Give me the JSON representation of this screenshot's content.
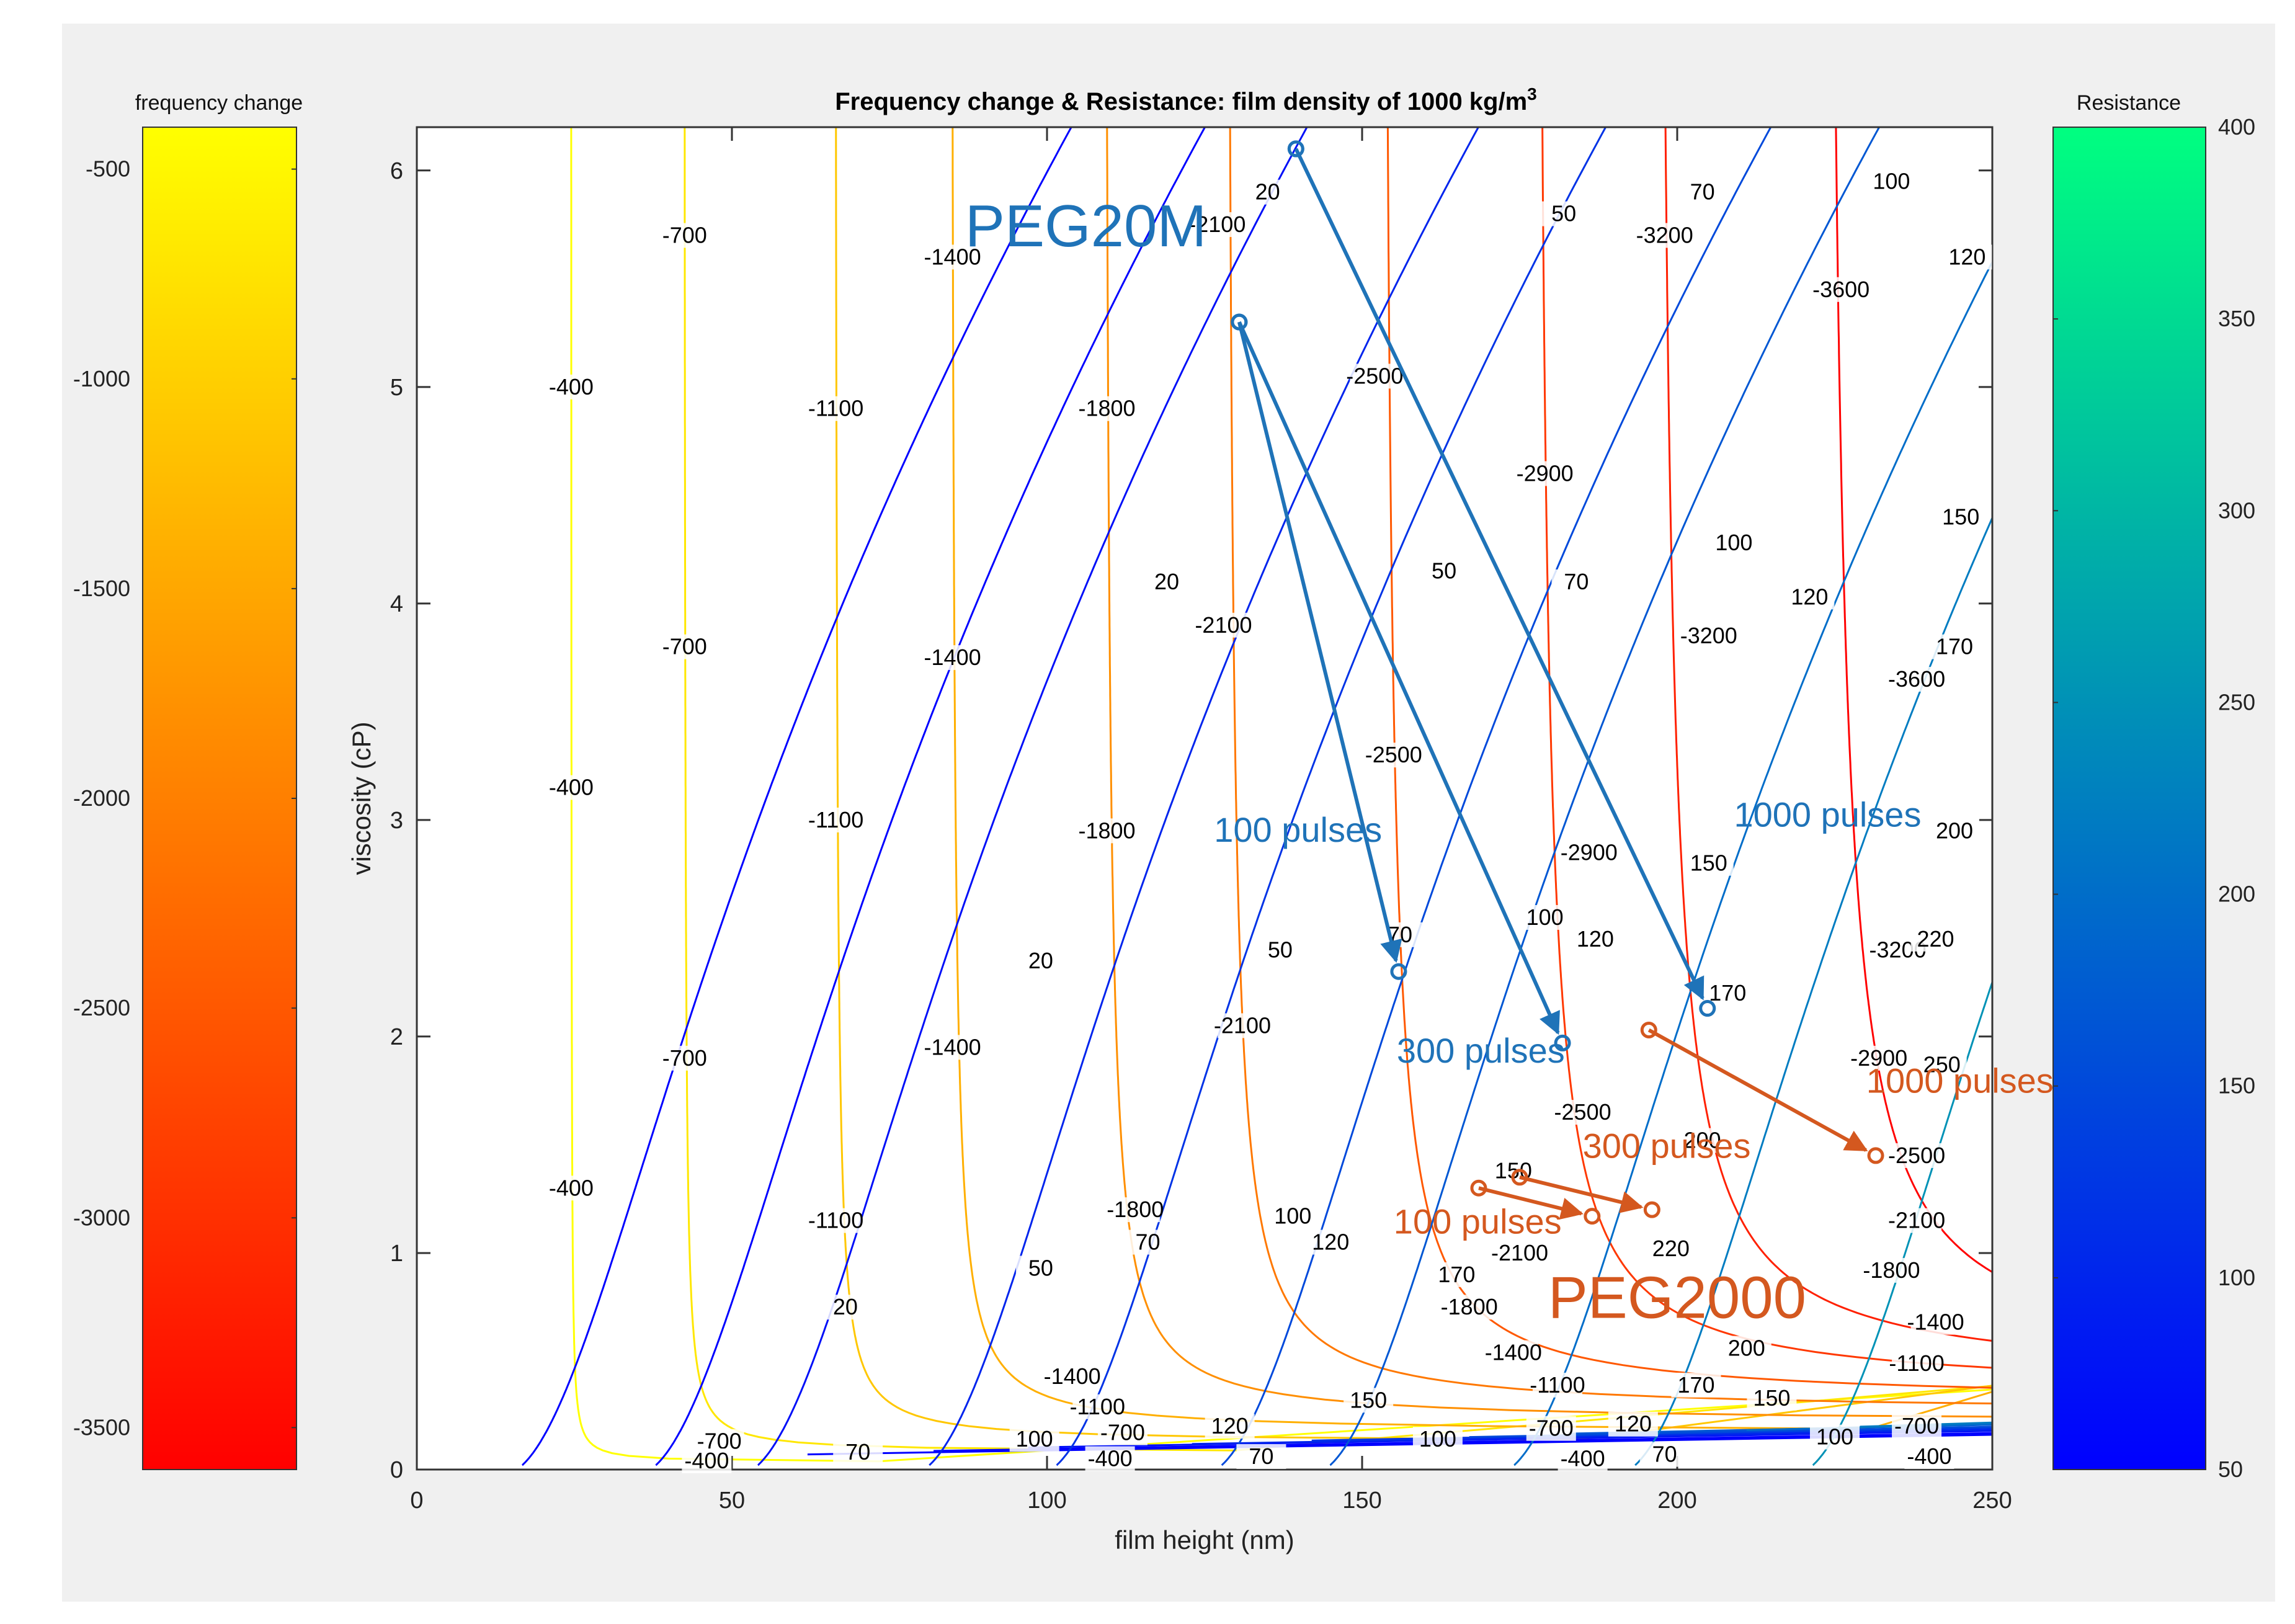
{
  "chart_data": {
    "type": "contour",
    "title": "Frequency change & Resistance: film density of 1000 kg/m",
    "title_superscript": "3",
    "xlabel": "film height (nm)",
    "ylabel": "viscosity (cP)",
    "xlim": [
      0,
      250
    ],
    "ylim": [
      0,
      6.2
    ],
    "xticks": [
      0,
      50,
      100,
      150,
      200,
      250
    ],
    "yticks": [
      0,
      1,
      2,
      3,
      4,
      5,
      6
    ],
    "colorbar_left": {
      "title": "frequency change",
      "range": [
        -3600,
        -400
      ],
      "ticks": [
        -500,
        -1000,
        -1500,
        -2000,
        -2500,
        -3000,
        -3500
      ],
      "colors": [
        "#ff0000",
        "#ffff00"
      ]
    },
    "colorbar_right": {
      "title": "Resistance",
      "range": [
        50,
        400
      ],
      "ticks": [
        50,
        100,
        150,
        200,
        250,
        300,
        350,
        400
      ],
      "colors": [
        "#0000ff",
        "#00ff80"
      ]
    },
    "frequency_levels": [
      -400,
      -700,
      -1100,
      -1400,
      -1800,
      -2100,
      -2500,
      -2900,
      -3200,
      -3600
    ],
    "frequency_asymptotes_nm": [
      24.5,
      42.5,
      66.5,
      85,
      109.5,
      129,
      154,
      178.5,
      198,
      225
    ],
    "resistance_levels": [
      20,
      50,
      70,
      100,
      120,
      150,
      170,
      200,
      220,
      250
    ],
    "resistance_c_nm": [
      22,
      42,
      57,
      83,
      102,
      127,
      143,
      171,
      189,
      216
    ],
    "contour_labels": {
      "frequency": [
        {
          "t": "-400",
          "x": 24.5,
          "y": 5.0
        },
        {
          "t": "-400",
          "x": 24.5,
          "y": 3.15
        },
        {
          "t": "-400",
          "x": 24.5,
          "y": 1.3
        },
        {
          "t": "-700",
          "x": 42.5,
          "y": 5.7
        },
        {
          "t": "-700",
          "x": 42.5,
          "y": 3.8
        },
        {
          "t": "-700",
          "x": 42.5,
          "y": 1.9
        },
        {
          "t": "-1100",
          "x": 66.5,
          "y": 4.9
        },
        {
          "t": "-1100",
          "x": 66.5,
          "y": 3.0
        },
        {
          "t": "-1100",
          "x": 66.5,
          "y": 1.15
        },
        {
          "t": "-1400",
          "x": 85,
          "y": 5.6
        },
        {
          "t": "-1400",
          "x": 85,
          "y": 3.75
        },
        {
          "t": "-1400",
          "x": 85,
          "y": 1.95
        },
        {
          "t": "-1800",
          "x": 109.5,
          "y": 4.9
        },
        {
          "t": "-1800",
          "x": 109.5,
          "y": 2.95
        },
        {
          "t": "-1800",
          "x": 114,
          "y": 1.2
        },
        {
          "t": "-2100",
          "x": 127,
          "y": 5.75
        },
        {
          "t": "-2100",
          "x": 128,
          "y": 3.9
        },
        {
          "t": "-2100",
          "x": 131,
          "y": 2.05
        },
        {
          "t": "-2500",
          "x": 152,
          "y": 5.05
        },
        {
          "t": "-2500",
          "x": 155,
          "y": 3.3
        },
        {
          "t": "-2900",
          "x": 179,
          "y": 4.6
        },
        {
          "t": "-2900",
          "x": 186,
          "y": 2.85
        },
        {
          "t": "-3200",
          "x": 198,
          "y": 5.7
        },
        {
          "t": "-3200",
          "x": 205,
          "y": 3.85
        },
        {
          "t": "-3600",
          "x": 226,
          "y": 5.45
        },
        {
          "t": "-3600",
          "x": 238,
          "y": 3.65
        },
        {
          "t": "-3200",
          "x": 235,
          "y": 2.4
        },
        {
          "t": "-2900",
          "x": 232,
          "y": 1.9
        },
        {
          "t": "-2500",
          "x": 185,
          "y": 1.65
        },
        {
          "t": "-2500",
          "x": 238,
          "y": 1.45
        },
        {
          "t": "-2100",
          "x": 175,
          "y": 1.0
        },
        {
          "t": "-2100",
          "x": 238,
          "y": 1.15
        },
        {
          "t": "-1800",
          "x": 167,
          "y": 0.75
        },
        {
          "t": "-1800",
          "x": 234,
          "y": 0.92
        },
        {
          "t": "-1400",
          "x": 174,
          "y": 0.54
        },
        {
          "t": "-1400",
          "x": 241,
          "y": 0.68
        },
        {
          "t": "-1400",
          "x": 104,
          "y": 0.43
        },
        {
          "t": "-1100",
          "x": 181,
          "y": 0.39
        },
        {
          "t": "-1100",
          "x": 238,
          "y": 0.49
        },
        {
          "t": "-1100",
          "x": 108,
          "y": 0.29
        },
        {
          "t": "-700",
          "x": 180,
          "y": 0.19
        },
        {
          "t": "-700",
          "x": 238,
          "y": 0.2
        },
        {
          "t": "-700",
          "x": 112,
          "y": 0.17
        },
        {
          "t": "-700",
          "x": 48,
          "y": 0.13
        },
        {
          "t": "-400",
          "x": 185,
          "y": 0.05
        },
        {
          "t": "-400",
          "x": 240,
          "y": 0.06
        },
        {
          "t": "-400",
          "x": 110,
          "y": 0.05
        },
        {
          "t": "-400",
          "x": 46,
          "y": 0.04
        }
      ],
      "resistance": [
        {
          "t": "20",
          "x": 135,
          "y": 5.9
        },
        {
          "t": "20",
          "x": 119,
          "y": 4.1
        },
        {
          "t": "20",
          "x": 99,
          "y": 2.35
        },
        {
          "t": "20",
          "x": 68,
          "y": 0.75
        },
        {
          "t": "50",
          "x": 182,
          "y": 5.8
        },
        {
          "t": "50",
          "x": 163,
          "y": 4.15
        },
        {
          "t": "50",
          "x": 137,
          "y": 2.4
        },
        {
          "t": "50",
          "x": 99,
          "y": 0.93
        },
        {
          "t": "70",
          "x": 204,
          "y": 5.9
        },
        {
          "t": "70",
          "x": 184,
          "y": 4.1
        },
        {
          "t": "70",
          "x": 156,
          "y": 2.47
        },
        {
          "t": "70",
          "x": 116,
          "y": 1.05
        },
        {
          "t": "70",
          "x": 70,
          "y": 0.08
        },
        {
          "t": "70",
          "x": 134,
          "y": 0.06
        },
        {
          "t": "70",
          "x": 198,
          "y": 0.07
        },
        {
          "t": "100",
          "x": 234,
          "y": 5.95
        },
        {
          "t": "100",
          "x": 209,
          "y": 4.28
        },
        {
          "t": "100",
          "x": 179,
          "y": 2.55
        },
        {
          "t": "100",
          "x": 139,
          "y": 1.17
        },
        {
          "t": "100",
          "x": 98,
          "y": 0.14
        },
        {
          "t": "100",
          "x": 162,
          "y": 0.14
        },
        {
          "t": "100",
          "x": 225,
          "y": 0.15
        },
        {
          "t": "120",
          "x": 246,
          "y": 5.6
        },
        {
          "t": "120",
          "x": 221,
          "y": 4.03
        },
        {
          "t": "120",
          "x": 187,
          "y": 2.45
        },
        {
          "t": "120",
          "x": 145,
          "y": 1.05
        },
        {
          "t": "120",
          "x": 129,
          "y": 0.2
        },
        {
          "t": "120",
          "x": 193,
          "y": 0.21
        },
        {
          "t": "150",
          "x": 245,
          "y": 4.4
        },
        {
          "t": "150",
          "x": 205,
          "y": 2.8
        },
        {
          "t": "150",
          "x": 174,
          "y": 1.38
        },
        {
          "t": "150",
          "x": 151,
          "y": 0.32
        },
        {
          "t": "150",
          "x": 215,
          "y": 0.33
        },
        {
          "t": "170",
          "x": 244,
          "y": 3.8
        },
        {
          "t": "170",
          "x": 208,
          "y": 2.2
        },
        {
          "t": "170",
          "x": 165,
          "y": 0.9
        },
        {
          "t": "170",
          "x": 203,
          "y": 0.39
        },
        {
          "t": "200",
          "x": 244,
          "y": 2.95
        },
        {
          "t": "200",
          "x": 204,
          "y": 1.52
        },
        {
          "t": "200",
          "x": 211,
          "y": 0.56
        },
        {
          "t": "220",
          "x": 241,
          "y": 2.45
        },
        {
          "t": "220",
          "x": 199,
          "y": 1.02
        },
        {
          "t": "250",
          "x": 242,
          "y": 1.87
        }
      ]
    },
    "series": [
      {
        "name": "PEG20M",
        "color": "#1f73b8",
        "points": [
          {
            "x": 139.5,
            "y": 6.1
          },
          {
            "x": 130.5,
            "y": 5.3
          }
        ],
        "transitions": [
          {
            "label": "100 pulses",
            "from": {
              "x": 130.5,
              "y": 5.3
            },
            "to": {
              "x": 155.8,
              "y": 2.3
            }
          },
          {
            "label": "300 pulses",
            "from": {
              "x": 130.5,
              "y": 5.3
            },
            "to": {
              "x": 181.8,
              "y": 1.97
            }
          },
          {
            "label": "1000 pulses",
            "from": {
              "x": 139.5,
              "y": 6.1
            },
            "to": {
              "x": 204.8,
              "y": 2.13
            }
          }
        ]
      },
      {
        "name": "PEG2000",
        "color": "#d4581f",
        "transitions": [
          {
            "label": "100 pulses",
            "from": {
              "x": 168.5,
              "y": 1.3
            },
            "to": {
              "x": 186.5,
              "y": 1.17
            }
          },
          {
            "label": "300 pulses",
            "from": {
              "x": 175,
              "y": 1.35
            },
            "to": {
              "x": 196,
              "y": 1.2
            }
          },
          {
            "label": "1000 pulses",
            "from": {
              "x": 195.5,
              "y": 2.03
            },
            "to": {
              "x": 231.5,
              "y": 1.45
            }
          }
        ]
      }
    ],
    "annotations": [
      {
        "text": "PEG20M",
        "color": "#1f73b8",
        "x": 87,
        "y": 5.65
      },
      {
        "text": "PEG2000",
        "color": "#d4581f",
        "x": 179.5,
        "y": 0.7
      },
      {
        "text": "100 pulses",
        "color": "#1f73b8",
        "x": 126.5,
        "y": 2.9
      },
      {
        "text": "300 pulses",
        "color": "#1f73b8",
        "x": 155.5,
        "y": 1.88
      },
      {
        "text": "1000 pulses",
        "color": "#1f73b8",
        "x": 209,
        "y": 2.97
      },
      {
        "text": "1000 pulses",
        "color": "#d4581f",
        "x": 230,
        "y": 1.74
      },
      {
        "text": "300 pulses",
        "color": "#d4581f",
        "x": 185,
        "y": 1.44
      },
      {
        "text": "100 pulses",
        "color": "#d4581f",
        "x": 155,
        "y": 1.09
      }
    ]
  }
}
